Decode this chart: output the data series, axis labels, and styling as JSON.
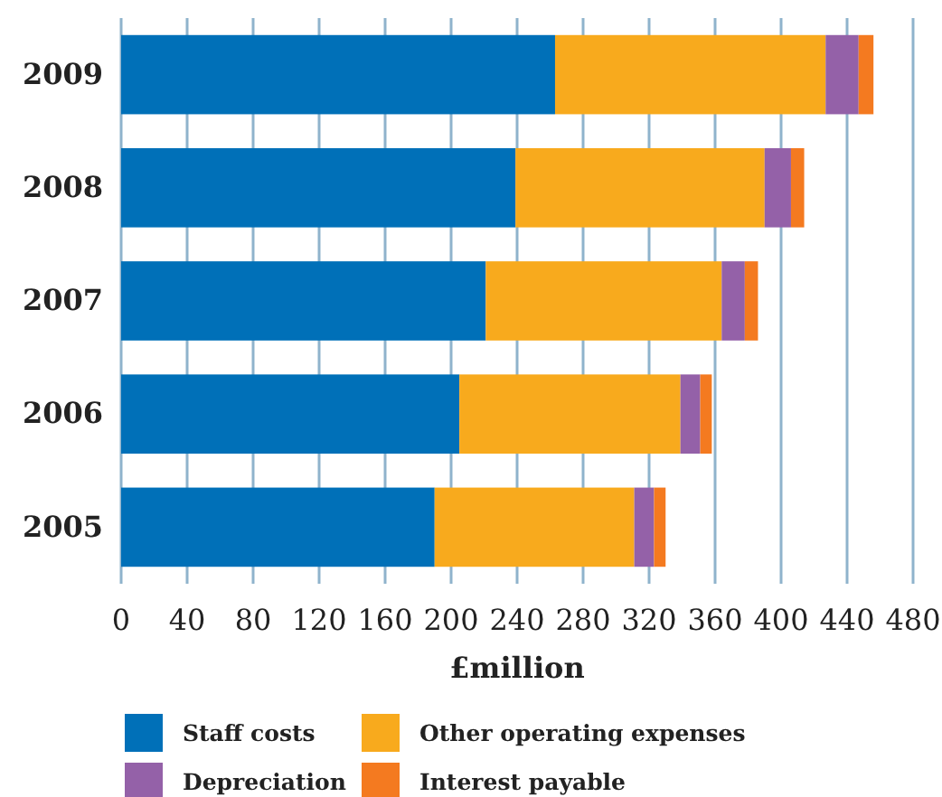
{
  "chart_data": {
    "type": "bar",
    "orientation": "horizontal",
    "stacked": true,
    "xlabel": "£million",
    "categories": [
      "2009",
      "2008",
      "2007",
      "2006",
      "2005"
    ],
    "series": [
      {
        "name": "Staff costs",
        "color": "#0070b8",
        "values": [
          263,
          239,
          221,
          205,
          190
        ]
      },
      {
        "name": "Other operating expenses",
        "color": "#f8aa1d",
        "values": [
          164,
          151,
          143,
          134,
          121
        ]
      },
      {
        "name": "Depreciation",
        "color": "#9461a8",
        "values": [
          20,
          16,
          14,
          12,
          12
        ]
      },
      {
        "name": "Interest payable",
        "color": "#f47a20",
        "values": [
          9,
          8,
          8,
          7,
          7
        ]
      }
    ],
    "xlim": [
      0,
      480
    ],
    "xticks": [
      0,
      40,
      80,
      120,
      160,
      200,
      240,
      280,
      320,
      360,
      400,
      440,
      480
    ],
    "grid": "x",
    "legend": "bottom"
  }
}
